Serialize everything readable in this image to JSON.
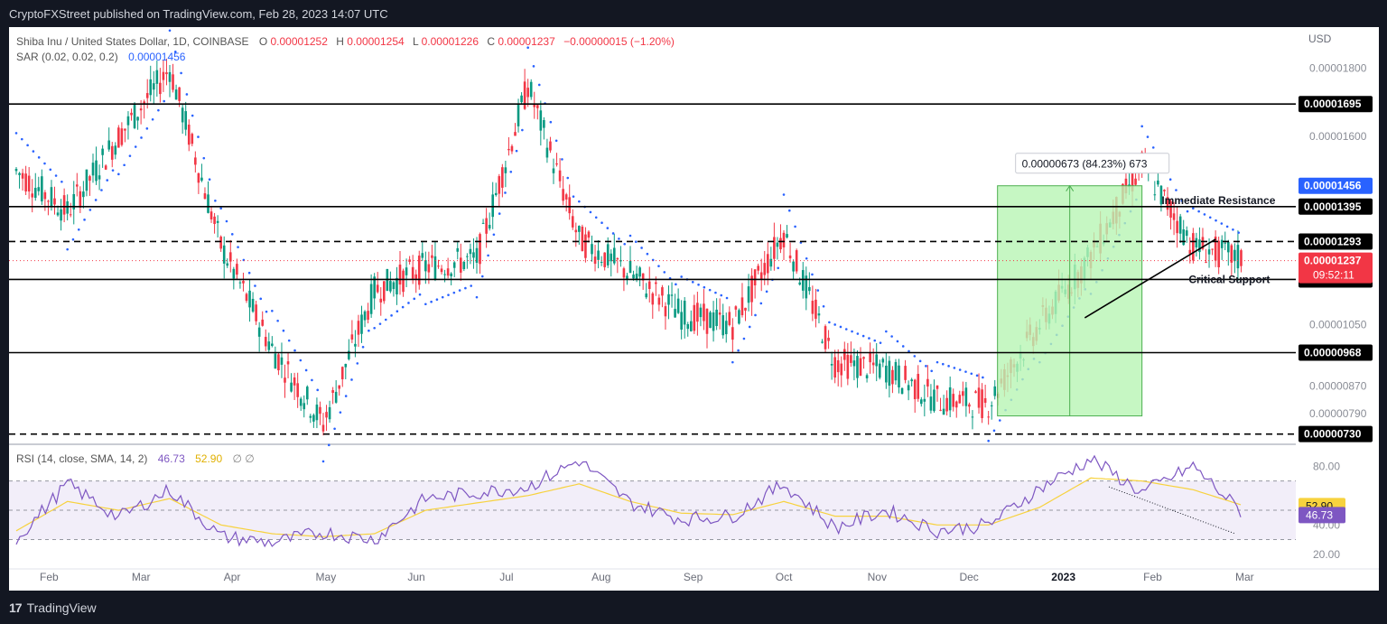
{
  "header": {
    "publisher_line": "CryptoFXStreet published on TradingView.com, Feb 28, 2023 14:07 UTC"
  },
  "footer": {
    "brand": "TradingView",
    "logo_glyph": "17"
  },
  "legend": {
    "symbol": "Shiba Inu / United States Dollar, 1D, COINBASE",
    "o_label": "O",
    "o": "0.00001252",
    "h_label": "H",
    "h": "0.00001254",
    "l_label": "L",
    "l": "0.00001226",
    "c_label": "C",
    "c": "0.00001237",
    "change": "−0.00000015 (−1.20%)",
    "sar_label": "SAR (0.02, 0.02, 0.2)",
    "sar_value": "0.00001456",
    "rsi_label": "RSI (14, close, SMA, 14, 2)",
    "rsi_value": "46.73",
    "rsi_sma_value": "52.90",
    "rsi_extra": "∅ ∅"
  },
  "colors": {
    "up": "#089981",
    "down": "#f23645",
    "sar": "#2962ff",
    "rsi": "#7e57c2",
    "rsi_ma": "#f7d23e",
    "range_fill": "#b8f5b4",
    "range_line": "#4caf50",
    "price_label_bg": "#f23645",
    "sar_label_bg": "#2962ff",
    "level_label_bg": "#000000"
  },
  "chart_data": {
    "type": "candlestick",
    "currency": "USD",
    "x_labels": [
      "Feb",
      "Mar",
      "Apr",
      "May",
      "Jun",
      "Jul",
      "Aug",
      "Sep",
      "Oct",
      "Nov",
      "Dec",
      "2023",
      "Jan",
      "Feb",
      "Mar"
    ],
    "x_ticks": [
      "Feb",
      "Mar",
      "Apr",
      "May",
      "Jun",
      "Jul",
      "Aug",
      "Sep",
      "Oct",
      "Nov",
      "Dec",
      "2023",
      "Feb",
      "Mar"
    ],
    "y_ticks": [
      "0.00001800",
      "0.00001600",
      "0.00001050",
      "0.00000870",
      "0.00000790"
    ],
    "y_range": [
      7e-06,
      1.92e-05
    ],
    "levels": [
      {
        "value": 1.695e-05,
        "label": "0.00001695",
        "style": "solid"
      },
      {
        "value": 1.395e-05,
        "label": "0.00001395",
        "style": "solid"
      },
      {
        "value": 1.293e-05,
        "label": "0.00001293",
        "style": "dashed"
      },
      {
        "value": 1.182e-05,
        "label": "0.00001182",
        "style": "solid"
      },
      {
        "value": 9.68e-06,
        "label": "0.00000968",
        "style": "solid"
      },
      {
        "value": 7.3e-06,
        "label": "0.00000730",
        "style": "dashed"
      }
    ],
    "last_price": {
      "value": 1.237e-05,
      "label": "0.00001237",
      "countdown": "09:52:11"
    },
    "sar_last": {
      "value": 1.456e-05,
      "label": "0.00001456"
    },
    "annotations": {
      "resistance": "Immediate Resistance",
      "support": "Critical Support",
      "measure": "0.00000673 (84.23%) 673"
    },
    "price_path": [
      [
        "Feb",
        1.5e-05
      ],
      [
        "Mar",
        1.38e-05
      ],
      [
        "Apr",
        1.6e-05
      ],
      [
        "May",
        1.8e-05
      ],
      [
        "May",
        1.28e-05
      ],
      [
        "Jun",
        9.8e-06
      ],
      [
        "Jun",
        7.6e-06
      ],
      [
        "Jul",
        1.15e-05
      ],
      [
        "Jul",
        1.22e-05
      ],
      [
        "Aug",
        1.24e-05
      ],
      [
        "Aug",
        1.75e-05
      ],
      [
        "Sep",
        1.3e-05
      ],
      [
        "Sep",
        1.2e-05
      ],
      [
        "Oct",
        1.08e-05
      ],
      [
        "Oct",
        1.05e-05
      ],
      [
        "Nov",
        1.32e-05
      ],
      [
        "Nov",
        9.4e-06
      ],
      [
        "Dec",
        9.2e-06
      ],
      [
        "Dec",
        8.3e-06
      ],
      [
        "2023",
        8.2e-06
      ],
      [
        "Jan",
        1.05e-05
      ],
      [
        "Jan",
        1.25e-05
      ],
      [
        "Feb",
        1.52e-05
      ],
      [
        "Feb",
        1.28e-05
      ],
      [
        "Mar",
        1.24e-05
      ]
    ],
    "rsi": {
      "y_ticks": [
        "80.00",
        "40.00",
        "20.00"
      ],
      "y_range": [
        10,
        95
      ],
      "band": [
        30,
        70
      ],
      "mid": 50,
      "rsi_last": {
        "value": 46.73,
        "label": "46.73"
      },
      "sma_last": {
        "value": 52.9,
        "label": "52.90"
      },
      "rsi_path": [
        [
          "Feb",
          30
        ],
        [
          "Feb",
          68
        ],
        [
          "Mar",
          45
        ],
        [
          "Apr",
          64
        ],
        [
          "May",
          32
        ],
        [
          "May",
          28
        ],
        [
          "Jun",
          35
        ],
        [
          "Jun",
          30
        ],
        [
          "Jul",
          58
        ],
        [
          "Jul",
          62
        ],
        [
          "Aug",
          66
        ],
        [
          "Aug",
          84
        ],
        [
          "Sep",
          55
        ],
        [
          "Oct",
          44
        ],
        [
          "Oct",
          46
        ],
        [
          "Nov",
          68
        ],
        [
          "Nov",
          38
        ],
        [
          "Dec",
          50
        ],
        [
          "Dec",
          36
        ],
        [
          "2023",
          40
        ],
        [
          "Jan",
          65
        ],
        [
          "Jan",
          85
        ],
        [
          "Feb",
          62
        ],
        [
          "Feb",
          80
        ],
        [
          "Mar",
          47
        ]
      ],
      "sma_path": [
        [
          "Feb",
          36
        ],
        [
          "Feb",
          56
        ],
        [
          "Mar",
          50
        ],
        [
          "Apr",
          58
        ],
        [
          "May",
          40
        ],
        [
          "May",
          34
        ],
        [
          "Jun",
          32
        ],
        [
          "Jun",
          34
        ],
        [
          "Jul",
          50
        ],
        [
          "Jul",
          55
        ],
        [
          "Aug",
          60
        ],
        [
          "Aug",
          68
        ],
        [
          "Sep",
          56
        ],
        [
          "Oct",
          48
        ],
        [
          "Oct",
          47
        ],
        [
          "Nov",
          56
        ],
        [
          "Nov",
          46
        ],
        [
          "Dec",
          46
        ],
        [
          "Dec",
          40
        ],
        [
          "2023",
          40
        ],
        [
          "Jan",
          52
        ],
        [
          "Jan",
          72
        ],
        [
          "Feb",
          70
        ],
        [
          "Feb",
          64
        ],
        [
          "Mar",
          53
        ]
      ]
    }
  }
}
